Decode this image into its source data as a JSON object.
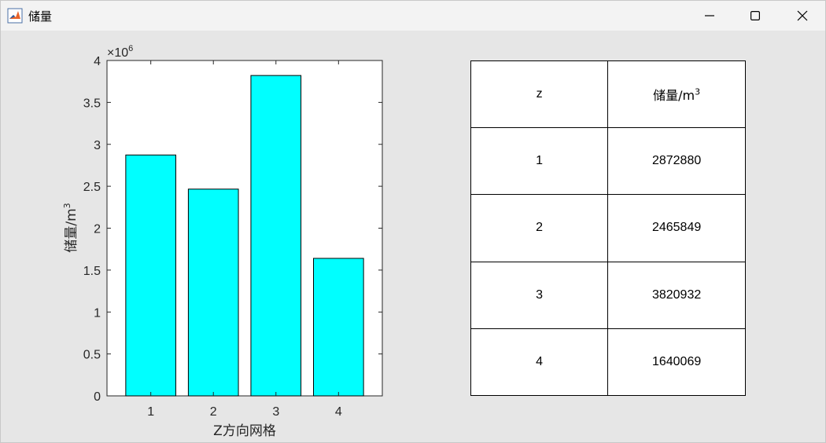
{
  "window": {
    "title": "储量"
  },
  "colors": {
    "bar": "#00ffff",
    "axis": "#262626"
  },
  "chart_data": {
    "type": "bar",
    "categories": [
      "1",
      "2",
      "3",
      "4"
    ],
    "values": [
      2872880,
      2465849,
      3820932,
      1640069
    ],
    "xlabel": "Z方向网格",
    "ylabel": "储量/m",
    "ylabel_sup": "3",
    "ylim": [
      0,
      4000000
    ],
    "yticks": [
      "0",
      "0.5",
      "1",
      "1.5",
      "2",
      "2.5",
      "3",
      "3.5",
      "4"
    ],
    "exponent_label": "×10",
    "exponent_sup": "6",
    "grid": false
  },
  "table": {
    "headers": [
      "z",
      "储量/m"
    ],
    "header_sup": "3",
    "rows": [
      [
        "1",
        "2872880"
      ],
      [
        "2",
        "2465849"
      ],
      [
        "3",
        "3820932"
      ],
      [
        "4",
        "1640069"
      ]
    ]
  }
}
